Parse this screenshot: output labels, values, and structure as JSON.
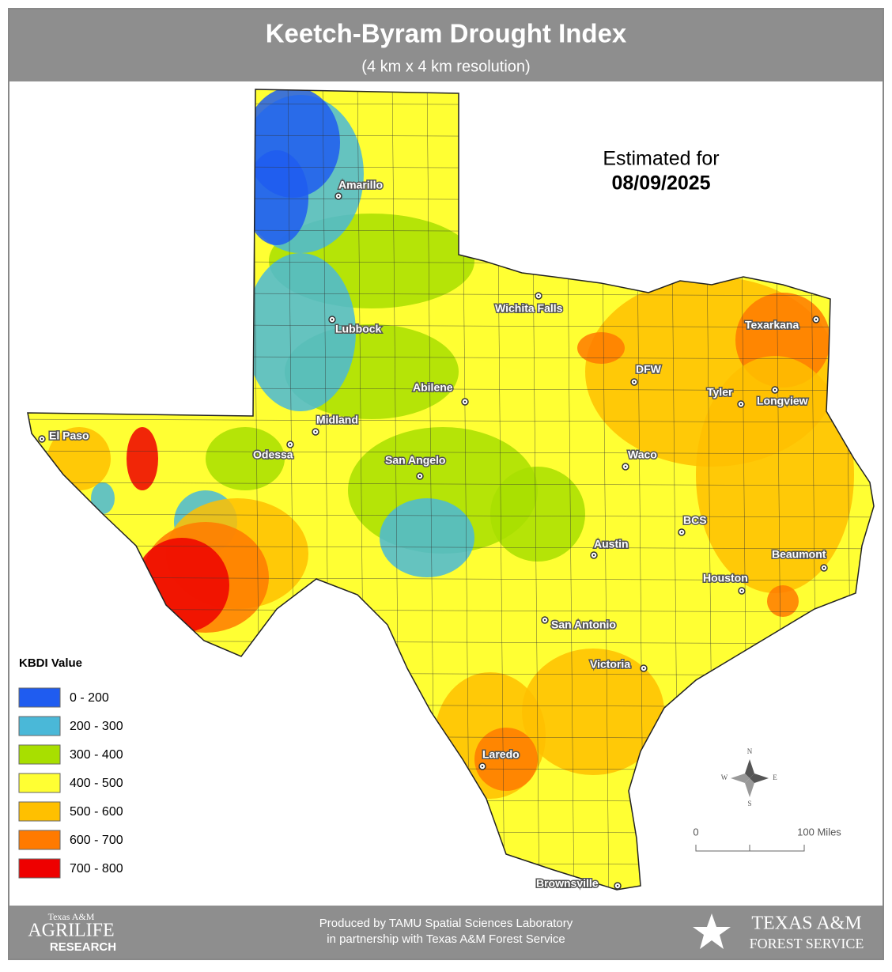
{
  "header": {
    "title": "Keetch-Byram Drought Index",
    "subtitle": "(4 km x 4 km resolution)"
  },
  "estimate": {
    "label": "Estimated for",
    "date": "08/09/2025"
  },
  "cities": [
    "Amarillo",
    "Wichita Falls",
    "Lubbock",
    "Texarkana",
    "DFW",
    "Abilene",
    "Tyler",
    "Longview",
    "Midland",
    "El Paso",
    "Odessa",
    "San Angelo",
    "Waco",
    "BCS",
    "Austin",
    "Beaumont",
    "Houston",
    "San Antonio",
    "Victoria",
    "Laredo",
    "Brownsville"
  ],
  "legend": {
    "title": "KBDI Value",
    "items": [
      {
        "label": "0 - 200",
        "color": "#1f5cf0"
      },
      {
        "label": "200 - 300",
        "color": "#4ab8d8"
      },
      {
        "label": "300 - 400",
        "color": "#a8df00"
      },
      {
        "label": "400 - 500",
        "color": "#ffff33"
      },
      {
        "label": "500 - 600",
        "color": "#ffc000"
      },
      {
        "label": "600 - 700",
        "color": "#ff7a00"
      },
      {
        "label": "700 - 800",
        "color": "#ee0000"
      }
    ]
  },
  "compass": {
    "n": "N",
    "e": "E",
    "s": "S",
    "w": "W"
  },
  "scale": {
    "start": "0",
    "end": "100 Miles"
  },
  "footer": {
    "line1": "Produced by TAMU Spatial Sciences Laboratory",
    "line2": "in partnership with Texas A&M Forest Service",
    "left_logo": {
      "top": "Texas A&M",
      "middle": "AgriLife",
      "bottom": "Research"
    },
    "right_logo": {
      "top": "Texas A&M",
      "bottom": "Forest Service"
    }
  }
}
